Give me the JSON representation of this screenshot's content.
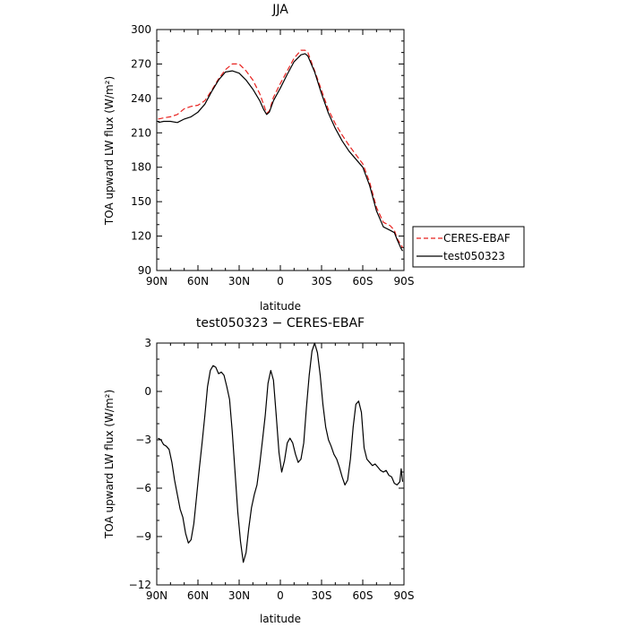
{
  "chart_data": [
    {
      "type": "line",
      "title": "JJA",
      "xlabel": "latitude",
      "ylabel": "TOA upward LW flux (W/m²)",
      "x_tick_labels": [
        "90N",
        "60N",
        "30N",
        "0",
        "30S",
        "60S",
        "90S"
      ],
      "x_tick_values": [
        90,
        60,
        30,
        0,
        -30,
        -60,
        -90
      ],
      "y_ticks": [
        90,
        120,
        150,
        180,
        210,
        240,
        270,
        300
      ],
      "xlim": [
        90,
        -90
      ],
      "ylim": [
        90,
        300
      ],
      "grid": false,
      "legend_position": "outside-right-lower",
      "series": [
        {
          "name": "CERES-EBAF",
          "color": "#e8221f",
          "dash": "dashed",
          "x": [
            89,
            85,
            80,
            75,
            70,
            65,
            60,
            55,
            50,
            45,
            40,
            35,
            30,
            25,
            20,
            15,
            12,
            10,
            8,
            5,
            0,
            -5,
            -10,
            -15,
            -18,
            -20,
            -25,
            -30,
            -35,
            -40,
            -45,
            -50,
            -55,
            -60,
            -65,
            -70,
            -75,
            -80,
            -83,
            -85,
            -88,
            -89
          ],
          "y": [
            222,
            223,
            224,
            226,
            231,
            233,
            234,
            238,
            247,
            257,
            265,
            270,
            270,
            264,
            256,
            244,
            234,
            227,
            229,
            241,
            253,
            264,
            275,
            282,
            282,
            280,
            264,
            247,
            230,
            218,
            208,
            199,
            191,
            183,
            167,
            145,
            132,
            129,
            125,
            118,
            112,
            110
          ]
        },
        {
          "name": "test050323",
          "color": "#000000",
          "dash": "solid",
          "x": [
            89,
            85,
            80,
            75,
            70,
            65,
            60,
            55,
            50,
            45,
            40,
            35,
            30,
            25,
            20,
            15,
            12,
            10,
            8,
            5,
            0,
            -5,
            -10,
            -15,
            -18,
            -20,
            -25,
            -30,
            -35,
            -40,
            -45,
            -50,
            -55,
            -60,
            -65,
            -70,
            -75,
            -80,
            -83,
            -85,
            -88,
            -89
          ],
          "y": [
            219,
            220,
            220,
            219,
            222,
            224,
            228,
            235,
            246,
            256,
            263,
            264,
            262,
            256,
            248,
            238,
            230,
            226,
            228,
            238,
            249,
            261,
            272,
            278,
            279,
            277,
            263,
            244,
            227,
            214,
            203,
            194,
            187,
            180,
            164,
            142,
            128,
            125,
            123,
            117,
            109,
            107
          ]
        }
      ]
    },
    {
      "type": "line",
      "title": "test050323 − CERES-EBAF",
      "xlabel": "latitude",
      "ylabel": "TOA upward LW flux (W/m²)",
      "x_tick_labels": [
        "90N",
        "60N",
        "30N",
        "0",
        "30S",
        "60S",
        "90S"
      ],
      "x_tick_values": [
        90,
        60,
        30,
        0,
        -30,
        -60,
        -90
      ],
      "y_tick_labels": [
        "3",
        "0",
        "−3",
        "−6",
        "−9",
        "−12"
      ],
      "y_tick_values": [
        3,
        0,
        -3,
        -6,
        -9,
        -12
      ],
      "xlim": [
        90,
        -90
      ],
      "ylim": [
        -12,
        3
      ],
      "grid": false,
      "series": [
        {
          "color": "#000000",
          "dash": "solid",
          "x": [
            89,
            87,
            85,
            83,
            81,
            79,
            77,
            75,
            73,
            71,
            69,
            67,
            65,
            63,
            61,
            59,
            57,
            55,
            53,
            51,
            49,
            47,
            45,
            43,
            41,
            39,
            37,
            35,
            33,
            31,
            29,
            27,
            25,
            23,
            21,
            19,
            17,
            15,
            13,
            11,
            9,
            7,
            5,
            3,
            1,
            -1,
            -3,
            -5,
            -7,
            -9,
            -11,
            -13,
            -15,
            -17,
            -19,
            -21,
            -23,
            -25,
            -27,
            -29,
            -31,
            -33,
            -35,
            -37,
            -39,
            -41,
            -43,
            -45,
            -47,
            -49,
            -51,
            -53,
            -55,
            -57,
            -59,
            -61,
            -63,
            -65,
            -67,
            -69,
            -71,
            -73,
            -75,
            -77,
            -79,
            -81,
            -83,
            -85,
            -87,
            -88,
            -89
          ],
          "y": [
            -2.9,
            -3.0,
            -3.3,
            -3.4,
            -3.6,
            -4.4,
            -5.5,
            -6.4,
            -7.3,
            -7.8,
            -8.8,
            -9.4,
            -9.2,
            -8.2,
            -6.5,
            -4.8,
            -3.2,
            -1.5,
            0.3,
            1.3,
            1.6,
            1.5,
            1.1,
            1.2,
            1.0,
            0.3,
            -0.5,
            -2.5,
            -5.0,
            -7.5,
            -9.3,
            -10.6,
            -10.0,
            -8.5,
            -7.2,
            -6.4,
            -5.8,
            -4.5,
            -3.0,
            -1.5,
            0.5,
            1.3,
            0.7,
            -1.5,
            -3.8,
            -5.0,
            -4.3,
            -3.2,
            -2.9,
            -3.2,
            -3.9,
            -4.4,
            -4.2,
            -3.2,
            -1.0,
            1.0,
            2.5,
            3.0,
            2.4,
            1.0,
            -0.8,
            -2.2,
            -3.0,
            -3.4,
            -3.9,
            -4.2,
            -4.7,
            -5.3,
            -5.8,
            -5.5,
            -4.2,
            -2.2,
            -0.8,
            -0.6,
            -1.3,
            -3.5,
            -4.2,
            -4.4,
            -4.6,
            -4.5,
            -4.7,
            -4.9,
            -5.0,
            -4.9,
            -5.2,
            -5.3,
            -5.7,
            -5.8,
            -5.6,
            -4.8,
            -5.6
          ]
        }
      ]
    }
  ],
  "legend": {
    "items": [
      {
        "label": "CERES-EBAF"
      },
      {
        "label": "test050323"
      }
    ]
  }
}
